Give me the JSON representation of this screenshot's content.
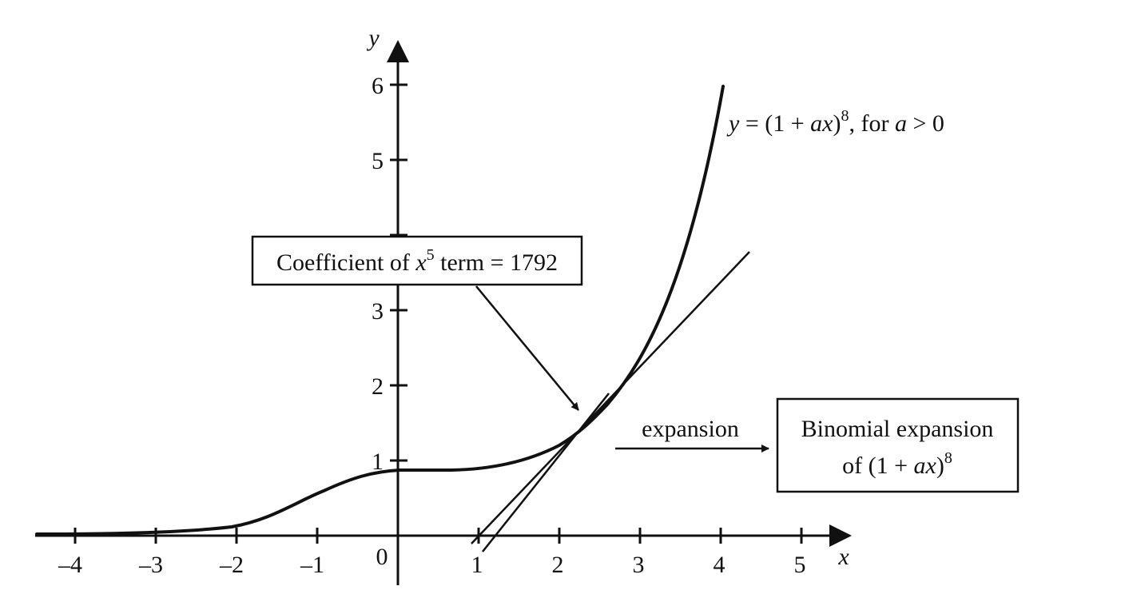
{
  "axes": {
    "x_label": "x",
    "y_label": "y",
    "origin_label": "0",
    "x_ticks": [
      "–4",
      "–3",
      "–2",
      "–1",
      "1",
      "2",
      "3",
      "4",
      "5"
    ],
    "y_ticks": [
      "1",
      "2",
      "3",
      "5",
      "6"
    ]
  },
  "curve_label": {
    "y": "y",
    "eq": " = (1 + ",
    "ax": "ax",
    "close": ")",
    "exp": "8",
    "tail": ", for ",
    "a": "a",
    "cond": " > 0"
  },
  "coefficient_box": {
    "pre": "Coefficient of ",
    "x": "x",
    "exp": "5",
    "post": " term = 1792"
  },
  "expansion_label": "expansion",
  "binomial_box": {
    "line1": "Binomial expansion",
    "pre": "of (1 + ",
    "ax": "ax",
    "close": ")",
    "exp": "8"
  },
  "colors": {
    "ink": "#111111",
    "background": "#ffffff"
  }
}
